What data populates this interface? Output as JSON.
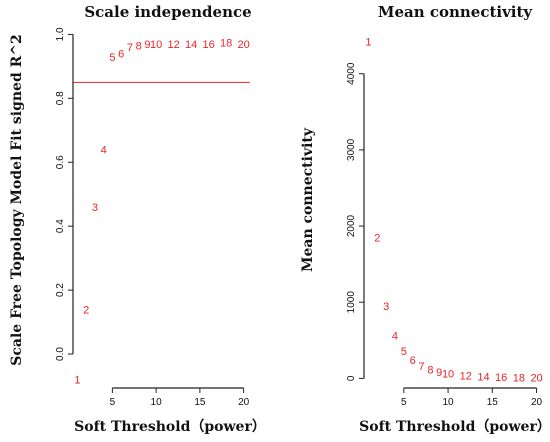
{
  "chart_data": [
    {
      "type": "scatter",
      "title": "Scale independence",
      "xlabel": "Soft Threshold（power）",
      "ylabel": "Scale Free Topology Model Fit signed R^2",
      "xlim": [
        0.5,
        20.5
      ],
      "ylim": [
        -0.1,
        1.02
      ],
      "x_ticks": [
        5,
        10,
        15,
        20
      ],
      "y_ticks": [
        0.0,
        0.2,
        0.4,
        0.6,
        0.8,
        1.0
      ],
      "y_tick_labels": [
        "0.0",
        "0.2",
        "0.4",
        "0.6",
        "0.8",
        "1.0"
      ],
      "reference_line": {
        "y": 0.85,
        "color": "#e8262a"
      },
      "point_color": "#e8262a",
      "points": [
        {
          "label": "1",
          "x": 1,
          "y": -0.08
        },
        {
          "label": "2",
          "x": 2,
          "y": 0.14
        },
        {
          "label": "3",
          "x": 3,
          "y": 0.46
        },
        {
          "label": "4",
          "x": 4,
          "y": 0.64
        },
        {
          "label": "5",
          "x": 5,
          "y": 0.93
        },
        {
          "label": "6",
          "x": 6,
          "y": 0.94
        },
        {
          "label": "7",
          "x": 7,
          "y": 0.96
        },
        {
          "label": "8",
          "x": 8,
          "y": 0.965
        },
        {
          "label": "9",
          "x": 9,
          "y": 0.97
        },
        {
          "label": "10",
          "x": 10,
          "y": 0.97
        },
        {
          "label": "12",
          "x": 12,
          "y": 0.97
        },
        {
          "label": "14",
          "x": 14,
          "y": 0.97
        },
        {
          "label": "16",
          "x": 16,
          "y": 0.97
        },
        {
          "label": "18",
          "x": 18,
          "y": 0.975
        },
        {
          "label": "20",
          "x": 20,
          "y": 0.97
        }
      ]
    },
    {
      "type": "scatter",
      "title": "Mean connectivity",
      "xlabel": "Soft Threshold（power）",
      "ylabel": "Mean connectivity",
      "xlim": [
        0.5,
        20.5
      ],
      "ylim": [
        -100,
        4600
      ],
      "x_ticks": [
        5,
        10,
        15,
        20
      ],
      "y_ticks": [
        0,
        1000,
        2000,
        3000,
        4000
      ],
      "y_tick_labels": [
        "0",
        "1000",
        "2000",
        "3000",
        "4000"
      ],
      "point_color": "#e8262a",
      "points": [
        {
          "label": "1",
          "x": 1,
          "y": 4420
        },
        {
          "label": "2",
          "x": 2,
          "y": 1850
        },
        {
          "label": "3",
          "x": 3,
          "y": 950
        },
        {
          "label": "4",
          "x": 4,
          "y": 560
        },
        {
          "label": "5",
          "x": 5,
          "y": 360
        },
        {
          "label": "6",
          "x": 6,
          "y": 240
        },
        {
          "label": "7",
          "x": 7,
          "y": 160
        },
        {
          "label": "8",
          "x": 8,
          "y": 115
        },
        {
          "label": "9",
          "x": 9,
          "y": 85
        },
        {
          "label": "10",
          "x": 10,
          "y": 65
        },
        {
          "label": "12",
          "x": 12,
          "y": 40
        },
        {
          "label": "14",
          "x": 14,
          "y": 25
        },
        {
          "label": "16",
          "x": 16,
          "y": 18
        },
        {
          "label": "18",
          "x": 18,
          "y": 12
        },
        {
          "label": "20",
          "x": 20,
          "y": 9
        }
      ]
    }
  ]
}
